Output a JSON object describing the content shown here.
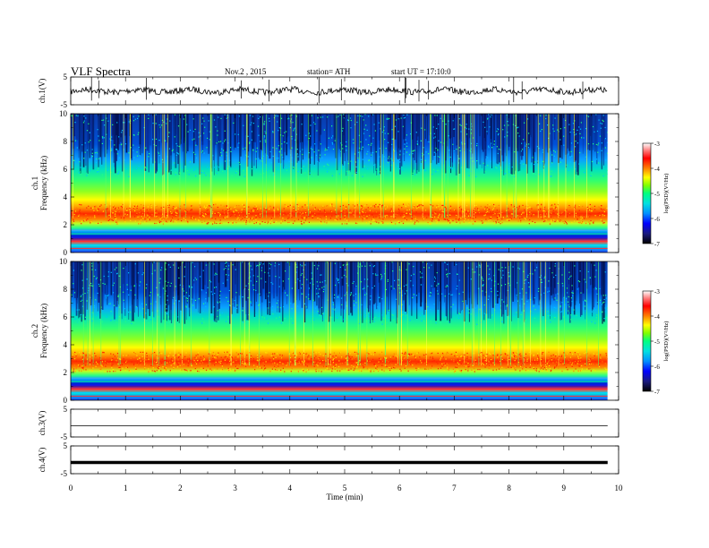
{
  "header": {
    "title": "VLF Spectra",
    "date": "Nov.2 , 2015",
    "station": "station= ATH",
    "start": "start UT = 17:10:0"
  },
  "colors": {
    "spectrum_scale": [
      "#000000",
      "#1a1a80",
      "#0000ff",
      "#0090ff",
      "#00e0e0",
      "#00ff80",
      "#80ff00",
      "#ffff00",
      "#ff8000",
      "#ff0000",
      "#ff8080",
      "#ffffff"
    ]
  },
  "chart_data": [
    {
      "type": "line",
      "name": "ch1-waveform",
      "ylabel": "ch.1(V)",
      "ylim": [
        -5,
        5
      ],
      "y_ticks": [
        "5",
        "-5"
      ],
      "baseline_v": 0,
      "amplitude_v": 0.8
    },
    {
      "type": "heatmap",
      "name": "ch1-spectrogram",
      "ylabel": "ch.1 Frequency (kHz)",
      "ylim": [
        0,
        10
      ],
      "y_ticks": [
        "0",
        "2",
        "4",
        "6",
        "8",
        "10"
      ],
      "colorbar": {
        "label": "log(PSD)(V²/Hz)",
        "range": [
          -7,
          -3
        ],
        "ticks": [
          "-3",
          "-4",
          "-5",
          "-6",
          "-7"
        ]
      },
      "band_peak_khz": 2.8
    },
    {
      "type": "heatmap",
      "name": "ch2-spectrogram",
      "ylabel": "ch.2 Frequency (kHz)",
      "ylim": [
        0,
        10
      ],
      "y_ticks": [
        "0",
        "2",
        "4",
        "6",
        "8",
        "10"
      ],
      "colorbar": {
        "label": "log(PSD)(V²/Hz)",
        "range": [
          -7,
          -3
        ],
        "ticks": [
          "-3",
          "-4",
          "-5",
          "-6",
          "-7"
        ]
      },
      "band_peak_khz": 2.8
    },
    {
      "type": "line",
      "name": "ch3-waveform",
      "ylabel": "ch.3(V)",
      "ylim": [
        -5,
        5
      ],
      "y_ticks": [
        "5",
        "-5"
      ],
      "baseline_v": 0
    },
    {
      "type": "line",
      "name": "ch4-waveform",
      "ylabel": "ch.4(V)",
      "ylim": [
        -5,
        5
      ],
      "y_ticks": [
        "5",
        "-5"
      ],
      "baseline_v": 0
    }
  ],
  "x_axis": {
    "label": "Time (min)",
    "xlim": [
      0,
      10
    ],
    "ticks": [
      "0",
      "1",
      "2",
      "3",
      "4",
      "5",
      "6",
      "7",
      "8",
      "9",
      "10"
    ],
    "data_end_min": 9.8
  }
}
